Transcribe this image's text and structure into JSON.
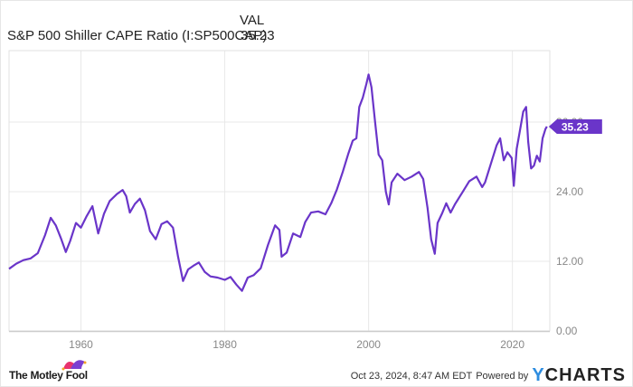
{
  "legend": {
    "column_header": "VAL",
    "series_name": "S&P 500 Shiller CAPE Ratio (I:SP500CAP)",
    "series_value": "35.23"
  },
  "chart_data": {
    "type": "line",
    "title": "S&P 500 Shiller CAPE Ratio (I:SP500CAP)",
    "xlabel": "",
    "ylabel": "",
    "xlim": [
      1950,
      2025.2
    ],
    "ylim": [
      0,
      48
    ],
    "grid": true,
    "y_axis_position": "right",
    "x_ticks": [
      "1960",
      "1980",
      "2000",
      "2020"
    ],
    "y_ticks": [
      "0.00",
      "12.00",
      "24.00",
      "36.00"
    ],
    "last_value_label": "35.23",
    "series": [
      {
        "name": "S&P 500 Shiller CAPE Ratio",
        "color": "#6a35c9",
        "x": [
          1950.0,
          1951.0,
          1952.0,
          1953.0,
          1954.0,
          1955.0,
          1955.8,
          1956.5,
          1957.2,
          1957.9,
          1958.5,
          1959.3,
          1960.0,
          1960.8,
          1961.6,
          1962.4,
          1963.2,
          1964.0,
          1965.0,
          1965.8,
          1966.3,
          1966.8,
          1967.5,
          1968.2,
          1968.9,
          1969.6,
          1970.4,
          1971.2,
          1972.0,
          1972.8,
          1973.5,
          1974.2,
          1974.9,
          1975.6,
          1976.4,
          1977.2,
          1978.0,
          1979.0,
          1980.0,
          1980.8,
          1981.6,
          1982.4,
          1983.2,
          1984.0,
          1985.0,
          1986.0,
          1987.0,
          1987.6,
          1987.9,
          1988.6,
          1989.5,
          1990.5,
          1991.2,
          1992.0,
          1993.0,
          1994.0,
          1994.8,
          1995.6,
          1996.4,
          1997.2,
          1997.8,
          1998.3,
          1998.7,
          1999.2,
          1999.7,
          2000.0,
          2000.4,
          2000.9,
          2001.4,
          2001.9,
          2002.4,
          2002.8,
          2003.2,
          2004.0,
          2005.0,
          2006.0,
          2007.0,
          2007.6,
          2008.2,
          2008.7,
          2009.2,
          2009.6,
          2010.2,
          2010.8,
          2011.4,
          2012.0,
          2013.0,
          2014.0,
          2015.0,
          2015.8,
          2016.2,
          2017.0,
          2017.8,
          2018.3,
          2018.8,
          2019.3,
          2019.9,
          2020.2,
          2020.6,
          2021.0,
          2021.5,
          2021.9,
          2022.2,
          2022.6,
          2023.0,
          2023.4,
          2023.8,
          2024.2,
          2024.6,
          2024.8
        ],
        "values": [
          10.7,
          11.6,
          12.2,
          12.5,
          13.4,
          16.5,
          19.5,
          18.2,
          16.0,
          13.6,
          15.5,
          18.6,
          17.8,
          19.8,
          21.5,
          16.8,
          20.2,
          22.4,
          23.6,
          24.3,
          23.2,
          20.4,
          21.9,
          22.8,
          20.8,
          17.2,
          15.8,
          18.4,
          18.9,
          17.8,
          12.8,
          8.6,
          10.6,
          11.2,
          11.8,
          10.2,
          9.4,
          9.2,
          8.8,
          9.3,
          8.0,
          6.9,
          9.2,
          9.6,
          10.8,
          14.8,
          18.2,
          17.4,
          12.8,
          13.5,
          16.8,
          16.2,
          18.8,
          20.4,
          20.6,
          20.1,
          22.0,
          24.4,
          27.4,
          30.6,
          32.8,
          33.2,
          38.6,
          40.2,
          42.6,
          44.2,
          42.0,
          36.0,
          30.4,
          29.4,
          24.0,
          21.8,
          25.6,
          27.1,
          26.0,
          26.6,
          27.4,
          26.2,
          21.2,
          15.8,
          13.3,
          18.6,
          20.2,
          22.0,
          20.4,
          21.8,
          23.8,
          25.8,
          26.6,
          24.8,
          25.6,
          28.8,
          32.0,
          33.2,
          29.4,
          30.8,
          29.8,
          25.0,
          31.4,
          34.2,
          37.8,
          38.6,
          32.6,
          28.0,
          28.5,
          30.2,
          29.2,
          33.2,
          34.8,
          35.23
        ]
      }
    ]
  },
  "footer": {
    "brand_left": "The Motley Fool",
    "timestamp": "Oct 23, 2024, 8:47 AM EDT",
    "powered_by": "Powered by",
    "brand_right_y": "Y",
    "brand_right_rest": "CHARTS"
  }
}
